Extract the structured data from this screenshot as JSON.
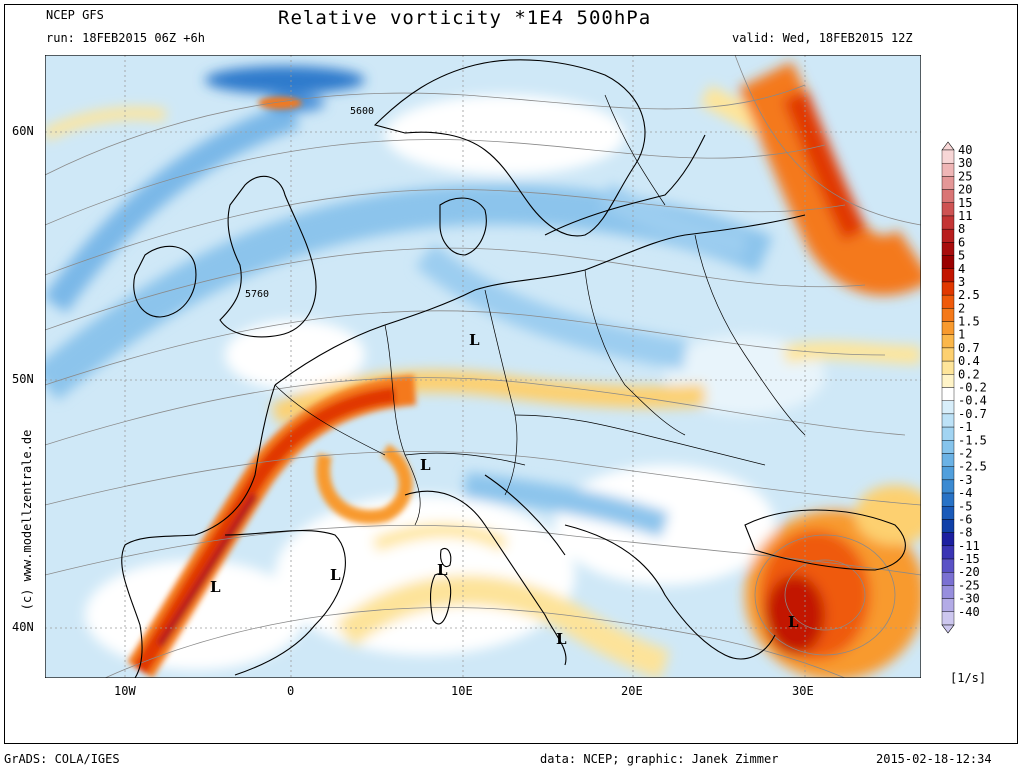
{
  "header": {
    "model": "NCEP GFS",
    "run": "run: 18FEB2015 06Z +6h",
    "title": "Relative vorticity *1E4 500hPa",
    "valid": "valid: Wed, 18FEB2015 12Z"
  },
  "axes": {
    "lat_labels": [
      "60N",
      "50N",
      "40N"
    ],
    "lon_labels": [
      "10W",
      "0",
      "10E",
      "20E",
      "30E"
    ]
  },
  "contour_labels": [
    "5600",
    "5760"
  ],
  "lows": [
    "L",
    "L",
    "L",
    "L",
    "L",
    "L",
    "L"
  ],
  "colorbar": {
    "unit": "[1/s]",
    "labels": [
      "40",
      "30",
      "25",
      "20",
      "15",
      "11",
      "8",
      "6",
      "5",
      "4",
      "3",
      "2.5",
      "2",
      "1.5",
      "1",
      "0.7",
      "0.4",
      "0.2",
      "-0.2",
      "-0.4",
      "-0.7",
      "-1",
      "-1.5",
      "-2",
      "-2.5",
      "-3",
      "-4",
      "-5",
      "-6",
      "-8",
      "-11",
      "-15",
      "-20",
      "-25",
      "-30",
      "-40"
    ],
    "colors": [
      "#f7d6d6",
      "#efb6b6",
      "#e49797",
      "#d97575",
      "#ce5353",
      "#c43535",
      "#b81e1e",
      "#a80c0c",
      "#9a0000",
      "#c21500",
      "#e13800",
      "#ef5a0a",
      "#f4791a",
      "#f89a2e",
      "#fbb74a",
      "#fdd070",
      "#fee59a",
      "#fff4c8",
      "#ffffff",
      "#d8eefa",
      "#bde2f7",
      "#a2d4f2",
      "#86c4ec",
      "#6bb2e5",
      "#519fdc",
      "#3b8ad2",
      "#2872c6",
      "#1a5ab9",
      "#1040a8",
      "#1c1fa0",
      "#3a34b4",
      "#5a52c6",
      "#7a70d2",
      "#978edd",
      "#b3abe6",
      "#cdc7ef"
    ]
  },
  "side_credit": "(c) www.modellzentrale.de",
  "footer": {
    "left": "GrADS: COLA/IGES",
    "center": "data: NCEP; graphic: Janek Zimmer",
    "right": "2015-02-18-12:34"
  }
}
